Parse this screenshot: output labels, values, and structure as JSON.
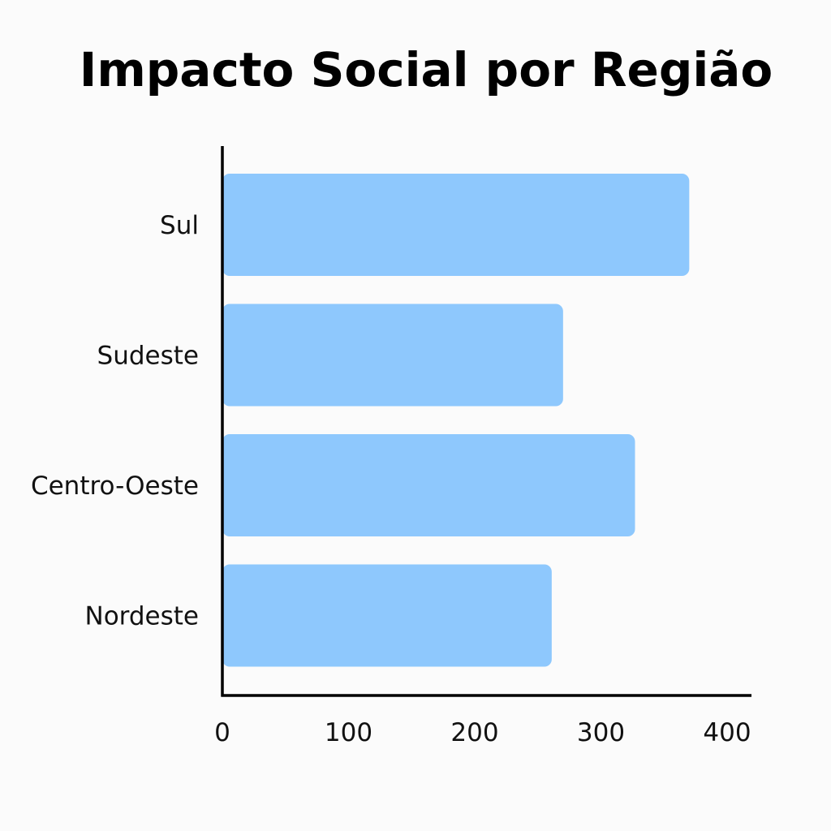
{
  "chart_data": {
    "type": "bar",
    "orientation": "horizontal",
    "title": "Impacto Social por Região",
    "xlabel": "",
    "ylabel": "",
    "categories": [
      "Sul",
      "Sudeste",
      "Centro-Oeste",
      "Nordeste"
    ],
    "values": [
      370,
      270,
      327,
      261
    ],
    "xlim": [
      0,
      420
    ],
    "xticks": [
      0,
      100,
      200,
      300,
      400
    ],
    "grid": false,
    "bar_color": "#8ec8fd",
    "axis_color": "#000000"
  }
}
